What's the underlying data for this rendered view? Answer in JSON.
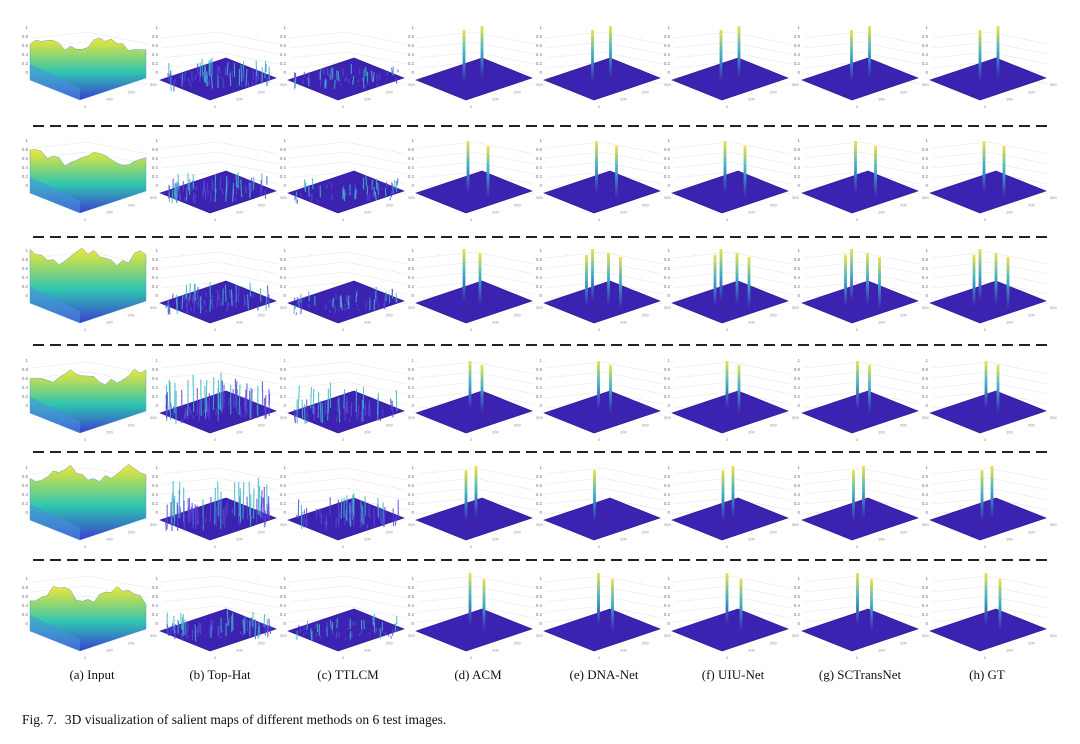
{
  "figure": {
    "columns": [
      {
        "label": "(a) Input"
      },
      {
        "label": "(b) Top-Hat"
      },
      {
        "label": "(c) TTLCM"
      },
      {
        "label": "(d) ACM"
      },
      {
        "label": "(e) DNA-Net"
      },
      {
        "label": "(f) UIU-Net"
      },
      {
        "label": "(g) SCTransNet"
      },
      {
        "label": "(h) GT"
      }
    ],
    "rows": 6,
    "caption_label": "Fig. 7.",
    "caption_text": "3D visualization of salient maps of different methods on 6 test images.",
    "z_tick_labels": [
      "0",
      "0.2",
      "0.4",
      "0.6",
      "0.8",
      "1"
    ],
    "axis_tick_labels_row1": [
      "0",
      "100",
      "200",
      "300"
    ],
    "colors": {
      "base": "#3c22b0",
      "base_dark": "#2a1690",
      "peak_mid": "#3fb5c8",
      "peak_top": "#f2e23c",
      "input_low": "#3a3fd0",
      "input_mid": "#2fc6b0",
      "input_high": "#f3e635",
      "separator": "#222222"
    }
  }
}
